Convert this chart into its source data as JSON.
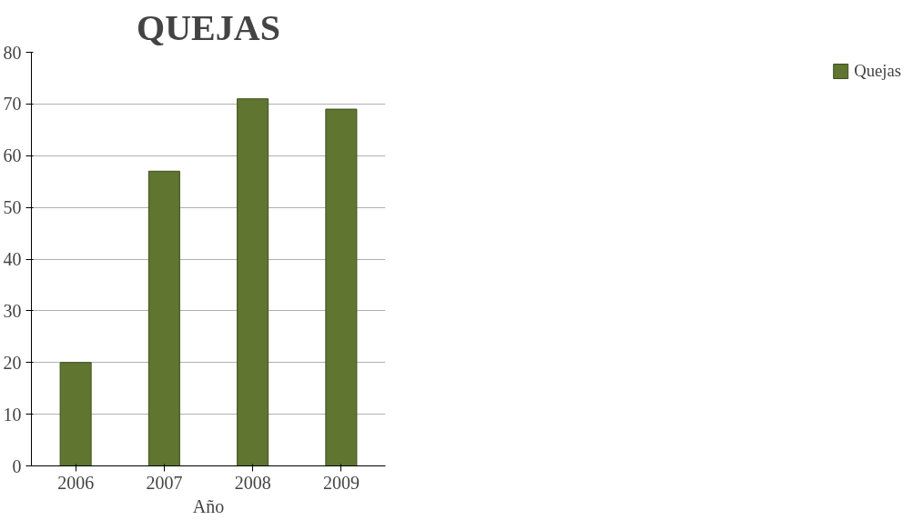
{
  "chart_data": {
    "type": "bar",
    "title": "QUEJAS",
    "xlabel": "Año",
    "categories": [
      "2006",
      "2007",
      "2008",
      "2009"
    ],
    "series": [
      {
        "name": "Quejas",
        "color": "#5f7530",
        "values": [
          20,
          57,
          71,
          69
        ]
      }
    ],
    "ylim": [
      0,
      80
    ],
    "yticks": [
      0,
      10,
      20,
      30,
      40,
      50,
      60,
      70,
      80
    ],
    "grid": "y",
    "legend": "right"
  }
}
